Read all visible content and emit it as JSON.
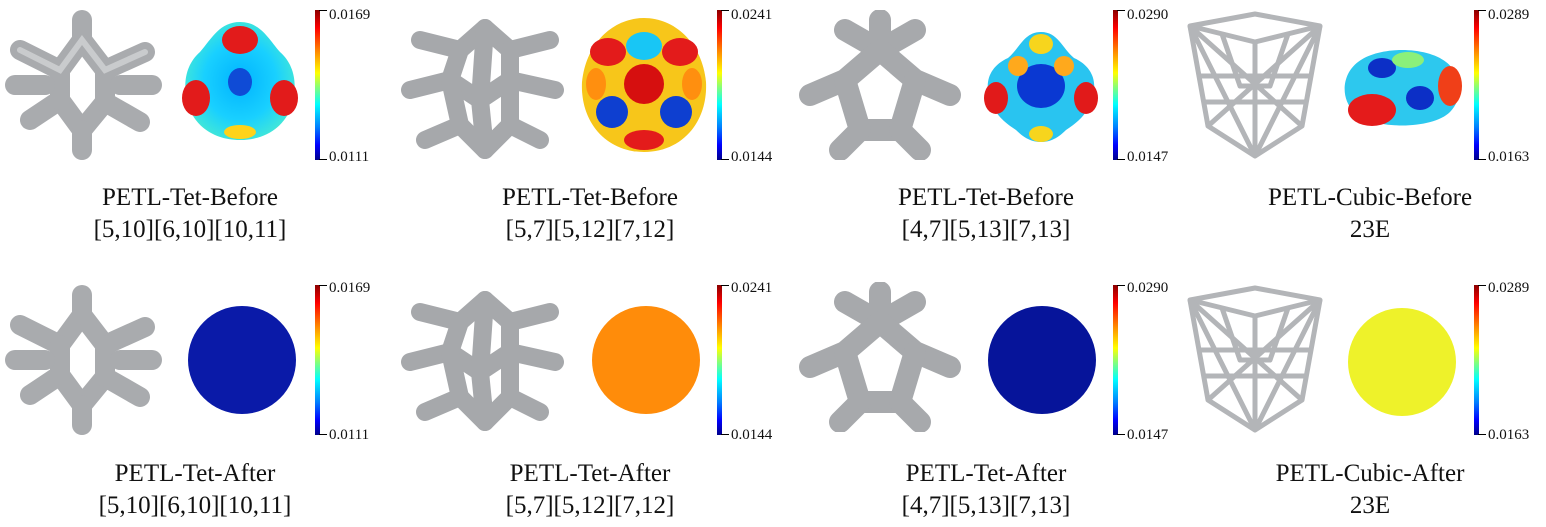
{
  "figure": {
    "panels": [
      {
        "id": "r1c1",
        "colorbar": {
          "max": "0.0169",
          "min": "0.0111"
        },
        "caption": {
          "line1": "PETL-Tet-Before",
          "line2": "[5,10][6,10][10,11]"
        }
      },
      {
        "id": "r1c2",
        "colorbar": {
          "max": "0.0241",
          "min": "0.0144"
        },
        "caption": {
          "line1": "PETL-Tet-Before",
          "line2": "[5,7][5,12][7,12]"
        }
      },
      {
        "id": "r1c3",
        "colorbar": {
          "max": "0.0290",
          "min": "0.0147"
        },
        "caption": {
          "line1": "PETL-Tet-Before",
          "line2": "[4,7][5,13][7,13]"
        }
      },
      {
        "id": "r1c4",
        "colorbar": {
          "max": "0.0289",
          "min": "0.0163"
        },
        "caption": {
          "line1": "PETL-Cubic-Before",
          "line2": "23E"
        }
      },
      {
        "id": "r2c1",
        "colorbar": {
          "max": "0.0169",
          "min": "0.0111"
        },
        "caption": {
          "line1": "PETL-Tet-After",
          "line2": "[5,10][6,10][10,11]"
        }
      },
      {
        "id": "r2c2",
        "colorbar": {
          "max": "0.0241",
          "min": "0.0144"
        },
        "caption": {
          "line1": "PETL-Tet-After",
          "line2": "[5,7][5,12][7,12]"
        }
      },
      {
        "id": "r2c3",
        "colorbar": {
          "max": "0.0290",
          "min": "0.0147"
        },
        "caption": {
          "line1": "PETL-Tet-After",
          "line2": "[4,7][5,13][7,13]"
        }
      },
      {
        "id": "r2c4",
        "colorbar": {
          "max": "0.0289",
          "min": "0.0163"
        },
        "caption": {
          "line1": "PETL-Cubic-After",
          "line2": "23E"
        }
      }
    ],
    "sphere_colors": {
      "r2c1": "#0a1aa8",
      "r2c2": "#ff8c0a",
      "r2c3": "#06149a",
      "r2c4": "#eef22a"
    }
  }
}
